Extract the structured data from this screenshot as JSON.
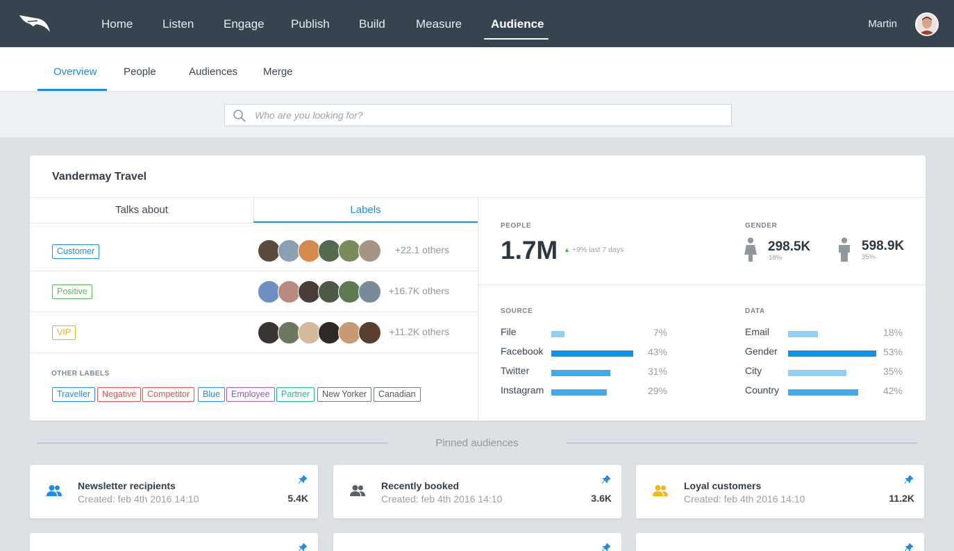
{
  "nav": {
    "items": [
      "Home",
      "Listen",
      "Engage",
      "Publish",
      "Build",
      "Measure",
      "Audience"
    ],
    "active": "Audience",
    "user_name": "Martin"
  },
  "subnav": {
    "tabs": [
      "Overview",
      "People",
      "Audiences",
      "Merge"
    ],
    "active": "Overview"
  },
  "search": {
    "placeholder": "Who are you looking for?"
  },
  "card": {
    "title": "Vandermay Travel",
    "tabs": [
      "Talks about",
      "Labels"
    ],
    "active_tab": "Labels",
    "label_rows": [
      {
        "label": "Customer",
        "color": "#1f8ce6",
        "others": "+22.1 others"
      },
      {
        "label": "Positive",
        "color": "#5cb85c",
        "others": "+16.7K others"
      },
      {
        "label": "VIP",
        "color": "#e8b51b",
        "others": "+11.2K others"
      }
    ],
    "other_labels_title": "OTHER LABELS",
    "other_labels": [
      {
        "label": "Traveller",
        "color": "#1f8ce6"
      },
      {
        "label": "Negative",
        "color": "#d9534f"
      },
      {
        "label": "Competitor",
        "color": "#d9534f"
      },
      {
        "label": "Blue",
        "color": "#1f8ce6"
      },
      {
        "label": "Employee",
        "color": "#9b59b6"
      },
      {
        "label": "Partner",
        "color": "#1abc9c"
      },
      {
        "label": "New Yorker",
        "color": "#6d767e"
      },
      {
        "label": "Canadian",
        "color": "#6d767e"
      }
    ],
    "people": {
      "label": "PEOPLE",
      "value": "1.7M",
      "change": "+9% last 7 days"
    },
    "gender": {
      "label": "GENDER",
      "female": {
        "value": "298.5K",
        "pct": "18%"
      },
      "male": {
        "value": "598.9K",
        "pct": "35%"
      }
    },
    "source": {
      "label": "SOURCE",
      "rows": [
        {
          "name": "File",
          "pct": "7%",
          "value": 7,
          "color": "#8ecff5"
        },
        {
          "name": "Facebook",
          "pct": "43%",
          "value": 43,
          "color": "#1192e8"
        },
        {
          "name": "Twitter",
          "pct": "31%",
          "value": 31,
          "color": "#42a9ec"
        },
        {
          "name": "Instagram",
          "pct": "29%",
          "value": 29,
          "color": "#42a9ec"
        }
      ]
    },
    "data_section": {
      "label": "DATA",
      "rows": [
        {
          "name": "Email",
          "pct": "18%",
          "value": 18,
          "color": "#8ecff5"
        },
        {
          "name": "Gender",
          "pct": "53%",
          "value": 53,
          "color": "#1192e8"
        },
        {
          "name": "City",
          "pct": "35%",
          "value": 35,
          "color": "#8ecff5"
        },
        {
          "name": "Country",
          "pct": "42%",
          "value": 42,
          "color": "#42a9ec"
        }
      ]
    }
  },
  "pinned": {
    "title": "Pinned audiences",
    "cards": [
      {
        "name": "Newsletter recipients",
        "created": "Created: feb 4th 2016 14:10",
        "count": "5.4K",
        "icon_color": "#1f8ce6"
      },
      {
        "name": "Recently booked",
        "created": "Created: feb 4th 2016 14:10",
        "count": "3.6K",
        "icon_color": "#56606a"
      },
      {
        "name": "Loyal customers",
        "created": "Created: feb 4th 2016 14:10",
        "count": "11.2K",
        "icon_color": "#f2b51c"
      }
    ]
  }
}
